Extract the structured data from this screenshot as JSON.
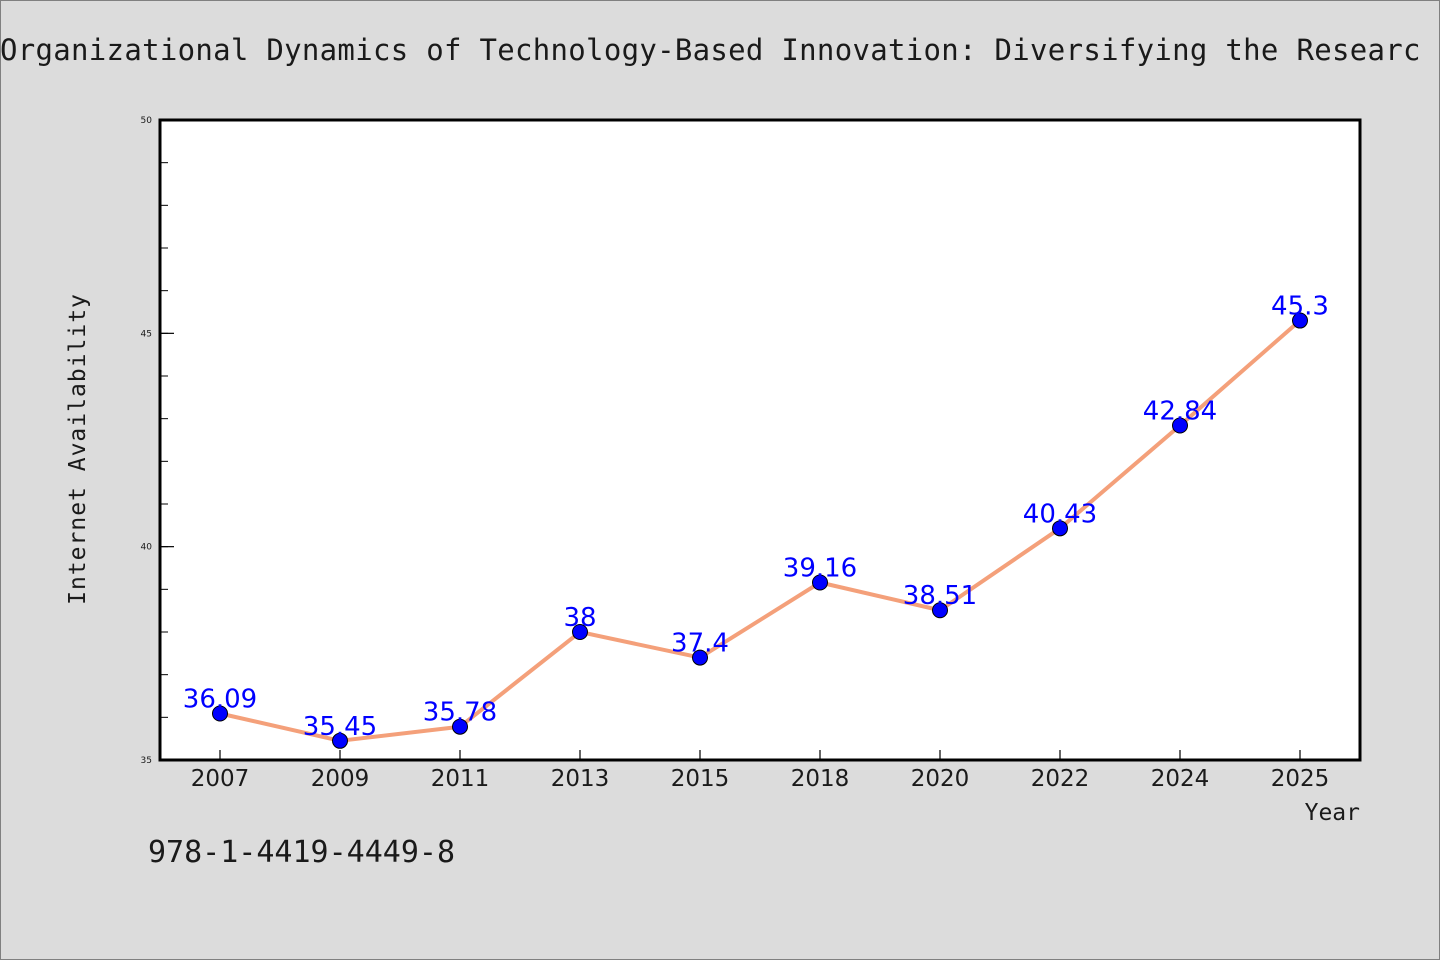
{
  "page": {
    "isbn": "978-1-4419-4449-8"
  },
  "chart_data": {
    "type": "line",
    "title": "Organizational Dynamics of Technology-Based Innovation: Diversifying the Researc",
    "xlabel": "Year",
    "ylabel": "Internet Availability",
    "categories": [
      "2007",
      "2009",
      "2011",
      "2013",
      "2015",
      "2018",
      "2020",
      "2022",
      "2024",
      "2025"
    ],
    "values": [
      36.09,
      35.45,
      35.78,
      38,
      37.4,
      39.16,
      38.51,
      40.43,
      42.84,
      45.3
    ],
    "data_labels": [
      "36.09",
      "35.45",
      "35.78",
      "38",
      "37.4",
      "39.16",
      "38.51",
      "40.43",
      "42.84",
      "45.3"
    ],
    "ylim": [
      35,
      50
    ],
    "yticks": [
      "35",
      "40",
      "45",
      "50"
    ],
    "grid": false,
    "line_color": "#f4a07a",
    "marker_color": "#0000ff",
    "label_color": "#0000ff",
    "background_color": "#dcdcdc",
    "plot_background": "#ffffff"
  }
}
